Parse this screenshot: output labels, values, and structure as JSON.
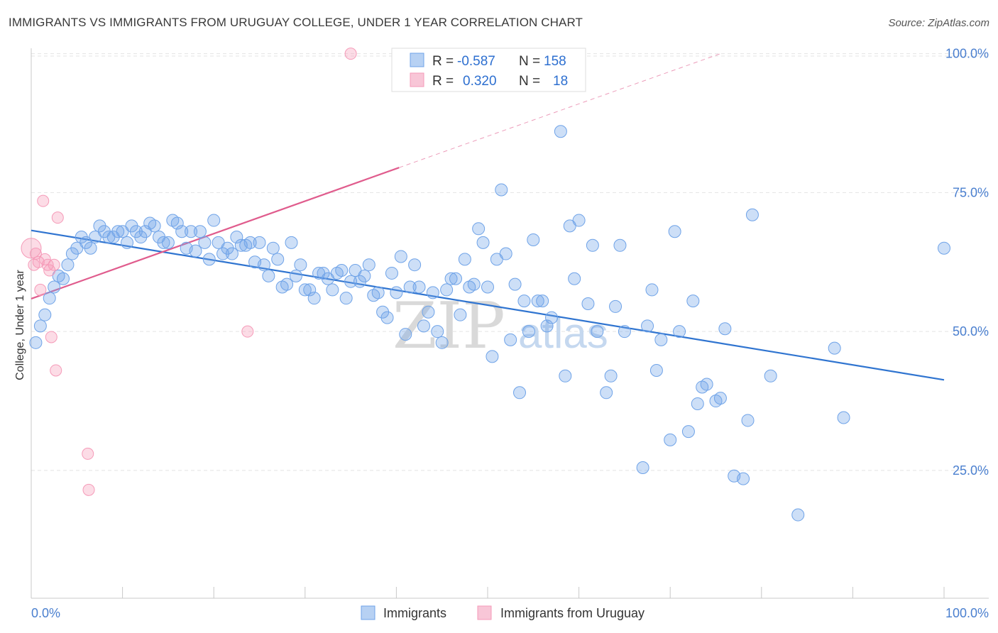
{
  "title": "IMMIGRANTS VS IMMIGRANTS FROM URUGUAY COLLEGE, UNDER 1 YEAR CORRELATION CHART",
  "source": "Source: ZipAtlas.com",
  "watermark": {
    "zip": "ZIP",
    "atlas": "atlas"
  },
  "colors": {
    "blue": "#6fa3e8",
    "blue_line": "#2f74d0",
    "pink": "#f59ab8",
    "pink_line": "#e05c8d",
    "tick": "#4a7fcf"
  },
  "legend": {
    "rows": [
      {
        "r_label": "R =",
        "r_value": "-0.587",
        "n_label": "N =",
        "n_value": "158"
      },
      {
        "r_label": "R =",
        "r_value": "0.320",
        "n_label": "N =",
        "n_value": "18"
      }
    ]
  },
  "bottom_legend": [
    "Immigrants",
    "Immigrants from Uruguay"
  ],
  "chart_data": {
    "type": "scatter",
    "title": "IMMIGRANTS VS IMMIGRANTS FROM URUGUAY COLLEGE, UNDER 1 YEAR CORRELATION CHART",
    "xlabel": "",
    "ylabel": "College, Under 1 year",
    "x_tick_labels": [
      "0.0%",
      "100.0%"
    ],
    "y_tick_labels": [
      "25.0%",
      "50.0%",
      "75.0%",
      "100.0%"
    ],
    "xlim": [
      0,
      100
    ],
    "ylim": [
      2,
      102
    ],
    "grid": true,
    "legend_position": "top-center",
    "series": [
      {
        "name": "Immigrants",
        "r": -0.587,
        "n": 158,
        "trend": {
          "x0": 0,
          "y0": 68.2,
          "x1": 100,
          "y1": 41.3
        },
        "points": [
          [
            0.5,
            48
          ],
          [
            1,
            51
          ],
          [
            1.5,
            53
          ],
          [
            2,
            56
          ],
          [
            2.5,
            58
          ],
          [
            3,
            60
          ],
          [
            3.5,
            59.5
          ],
          [
            4,
            62
          ],
          [
            4.5,
            64
          ],
          [
            5,
            65
          ],
          [
            5.5,
            67
          ],
          [
            6,
            66
          ],
          [
            6.5,
            65
          ],
          [
            7,
            67
          ],
          [
            7.5,
            69
          ],
          [
            8,
            68
          ],
          [
            8.5,
            67
          ],
          [
            9,
            67
          ],
          [
            9.5,
            68
          ],
          [
            10,
            68
          ],
          [
            10.5,
            66
          ],
          [
            11,
            69
          ],
          [
            11.5,
            68
          ],
          [
            12,
            67
          ],
          [
            12.5,
            68
          ],
          [
            13,
            69.5
          ],
          [
            13.5,
            69
          ],
          [
            14,
            67
          ],
          [
            14.5,
            66
          ],
          [
            15,
            66
          ],
          [
            15.5,
            70
          ],
          [
            16,
            69.5
          ],
          [
            16.5,
            68
          ],
          [
            17,
            65
          ],
          [
            17.5,
            68
          ],
          [
            18,
            64.5
          ],
          [
            18.5,
            68
          ],
          [
            19,
            66
          ],
          [
            19.5,
            63
          ],
          [
            20,
            70
          ],
          [
            20.5,
            66
          ],
          [
            21,
            64
          ],
          [
            21.5,
            65
          ],
          [
            22,
            64
          ],
          [
            22.5,
            67
          ],
          [
            23,
            65.5
          ],
          [
            23.5,
            65.5
          ],
          [
            24,
            66
          ],
          [
            24.5,
            62.5
          ],
          [
            25,
            66
          ],
          [
            25.5,
            62
          ],
          [
            26,
            60
          ],
          [
            26.5,
            65
          ],
          [
            27,
            63
          ],
          [
            27.5,
            58
          ],
          [
            28,
            58.5
          ],
          [
            28.5,
            66
          ],
          [
            29,
            60
          ],
          [
            29.5,
            62
          ],
          [
            30,
            57.5
          ],
          [
            30.5,
            57.5
          ],
          [
            31,
            56
          ],
          [
            31.5,
            60.5
          ],
          [
            32,
            60.5
          ],
          [
            32.5,
            59.5
          ],
          [
            33,
            57.5
          ],
          [
            33.5,
            60.5
          ],
          [
            34,
            61
          ],
          [
            34.5,
            56
          ],
          [
            35,
            59
          ],
          [
            35.5,
            61
          ],
          [
            36,
            59
          ],
          [
            36.5,
            60
          ],
          [
            37,
            62
          ],
          [
            37.5,
            56.5
          ],
          [
            38,
            57
          ],
          [
            38.5,
            53.5
          ],
          [
            39,
            52.5
          ],
          [
            39.5,
            60.5
          ],
          [
            40,
            57
          ],
          [
            40.5,
            63.5
          ],
          [
            41,
            49.5
          ],
          [
            41.5,
            58
          ],
          [
            42,
            62
          ],
          [
            42.5,
            58
          ],
          [
            43,
            51
          ],
          [
            43.5,
            53.5
          ],
          [
            44,
            57
          ],
          [
            44.5,
            50
          ],
          [
            45,
            48
          ],
          [
            45.5,
            57.5
          ],
          [
            46,
            59.5
          ],
          [
            46.5,
            59.5
          ],
          [
            47,
            53
          ],
          [
            47.5,
            63
          ],
          [
            48,
            58
          ],
          [
            48.5,
            58.5
          ],
          [
            49,
            68.5
          ],
          [
            49.5,
            66
          ],
          [
            50,
            58
          ],
          [
            50.5,
            45.5
          ],
          [
            51,
            63
          ],
          [
            51.5,
            75.5
          ],
          [
            52,
            64
          ],
          [
            52.5,
            48.5
          ],
          [
            53,
            58.5
          ],
          [
            53.5,
            39
          ],
          [
            54,
            55.5
          ],
          [
            54.5,
            50
          ],
          [
            55,
            66.5
          ],
          [
            55.5,
            55.5
          ],
          [
            56,
            55.5
          ],
          [
            56.5,
            51
          ],
          [
            57,
            52.5
          ],
          [
            58,
            86
          ],
          [
            58.5,
            42
          ],
          [
            59,
            69
          ],
          [
            59.5,
            59.5
          ],
          [
            60,
            70
          ],
          [
            61,
            55
          ],
          [
            61.5,
            65.5
          ],
          [
            62,
            50
          ],
          [
            63,
            39
          ],
          [
            63.5,
            42
          ],
          [
            64,
            54.5
          ],
          [
            64.5,
            65.5
          ],
          [
            65,
            50
          ],
          [
            67,
            25.5
          ],
          [
            67.5,
            51
          ],
          [
            68,
            57.5
          ],
          [
            68.5,
            43
          ],
          [
            69,
            48.5
          ],
          [
            70,
            30.5
          ],
          [
            70.5,
            68
          ],
          [
            71,
            50
          ],
          [
            72,
            32
          ],
          [
            72.5,
            55.5
          ],
          [
            73,
            37
          ],
          [
            73.5,
            40
          ],
          [
            74,
            40.5
          ],
          [
            75,
            37.5
          ],
          [
            75.5,
            38
          ],
          [
            76,
            50.5
          ],
          [
            77,
            24
          ],
          [
            78,
            23.5
          ],
          [
            78.5,
            34
          ],
          [
            79,
            71
          ],
          [
            81,
            42
          ],
          [
            84,
            17
          ],
          [
            88,
            47
          ],
          [
            89,
            34.5
          ],
          [
            100,
            65
          ]
        ]
      },
      {
        "name": "Immigrants from Uruguay",
        "r": 0.32,
        "n": 18,
        "trend": {
          "x0": 0,
          "y0": 55.9,
          "x1": 40.3,
          "y1": 79.5,
          "dash_x1": 75.5,
          "dash_y1": 100
        },
        "points": [
          [
            0,
            65
          ],
          [
            0.3,
            62
          ],
          [
            0.5,
            64
          ],
          [
            0.8,
            62.5
          ],
          [
            1,
            57.5
          ],
          [
            1.3,
            73.5
          ],
          [
            1.5,
            63
          ],
          [
            1.8,
            62
          ],
          [
            2,
            61
          ],
          [
            2.2,
            49
          ],
          [
            2.5,
            62
          ],
          [
            2.7,
            43
          ],
          [
            2.9,
            70.5
          ],
          [
            6.2,
            28
          ],
          [
            6.3,
            21.5
          ],
          [
            23.7,
            50
          ],
          [
            35,
            100
          ]
        ]
      }
    ]
  }
}
